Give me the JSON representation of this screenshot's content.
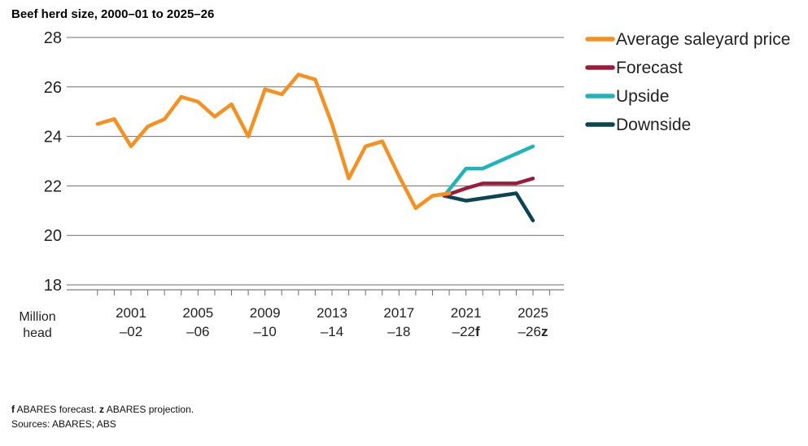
{
  "chart_data": {
    "type": "line",
    "title": "Beef herd size, 2000–01 to 2025–26",
    "ylabel": "Million head",
    "ylim": [
      17.8,
      28
    ],
    "yticks": [
      "28",
      "26",
      "24",
      "22",
      "20",
      "18"
    ],
    "y_unit_line1": "Million",
    "y_unit_line2": "head",
    "xticks": [
      {
        "year": "2001",
        "fy": "–02",
        "suffix": ""
      },
      {
        "year": "2005",
        "fy": "–06",
        "suffix": ""
      },
      {
        "year": "2009",
        "fy": "–10",
        "suffix": ""
      },
      {
        "year": "2013",
        "fy": "–14",
        "suffix": ""
      },
      {
        "year": "2017",
        "fy": "–18",
        "suffix": ""
      },
      {
        "year": "2021",
        "fy": "–22",
        "suffix": "f"
      },
      {
        "year": "2025",
        "fy": "–26",
        "suffix": "z"
      }
    ],
    "legend_position": "right",
    "series": [
      {
        "name": "Average saleyard price",
        "color": "#f7901e",
        "x": [
          1999,
          2000,
          2001,
          2002,
          2003,
          2004,
          2005,
          2006,
          2007,
          2008,
          2009,
          2010,
          2011,
          2012,
          2013,
          2014,
          2015,
          2016,
          2017,
          2018,
          2019,
          2020
        ],
        "y": [
          24.5,
          24.7,
          23.6,
          24.4,
          24.7,
          25.6,
          25.4,
          24.8,
          25.3,
          24.0,
          25.9,
          25.7,
          26.5,
          26.3,
          24.5,
          22.3,
          23.6,
          23.8,
          22.4,
          21.1,
          21.6,
          21.7
        ]
      },
      {
        "name": "Forecast",
        "color": "#9b1b3b",
        "x": [
          2019.7,
          2021,
          2022,
          2023,
          2024,
          2025
        ],
        "y": [
          21.6,
          21.9,
          22.1,
          22.1,
          22.1,
          22.3
        ]
      },
      {
        "name": "Upside",
        "color": "#1db5b9",
        "x": [
          2019.7,
          2021,
          2022,
          2025
        ],
        "y": [
          21.6,
          22.7,
          22.7,
          23.6
        ]
      },
      {
        "name": "Downside",
        "color": "#0a4552",
        "x": [
          2019.7,
          2021,
          2024,
          2025
        ],
        "y": [
          21.6,
          21.4,
          21.7,
          20.6
        ]
      }
    ]
  },
  "footnotes": {
    "line1_f": "f",
    "line1_a": " ABARES forecast. ",
    "line1_z": "z",
    "line1_b": " ABARES projection.",
    "sources": "Sources: ABARES; ABS"
  }
}
